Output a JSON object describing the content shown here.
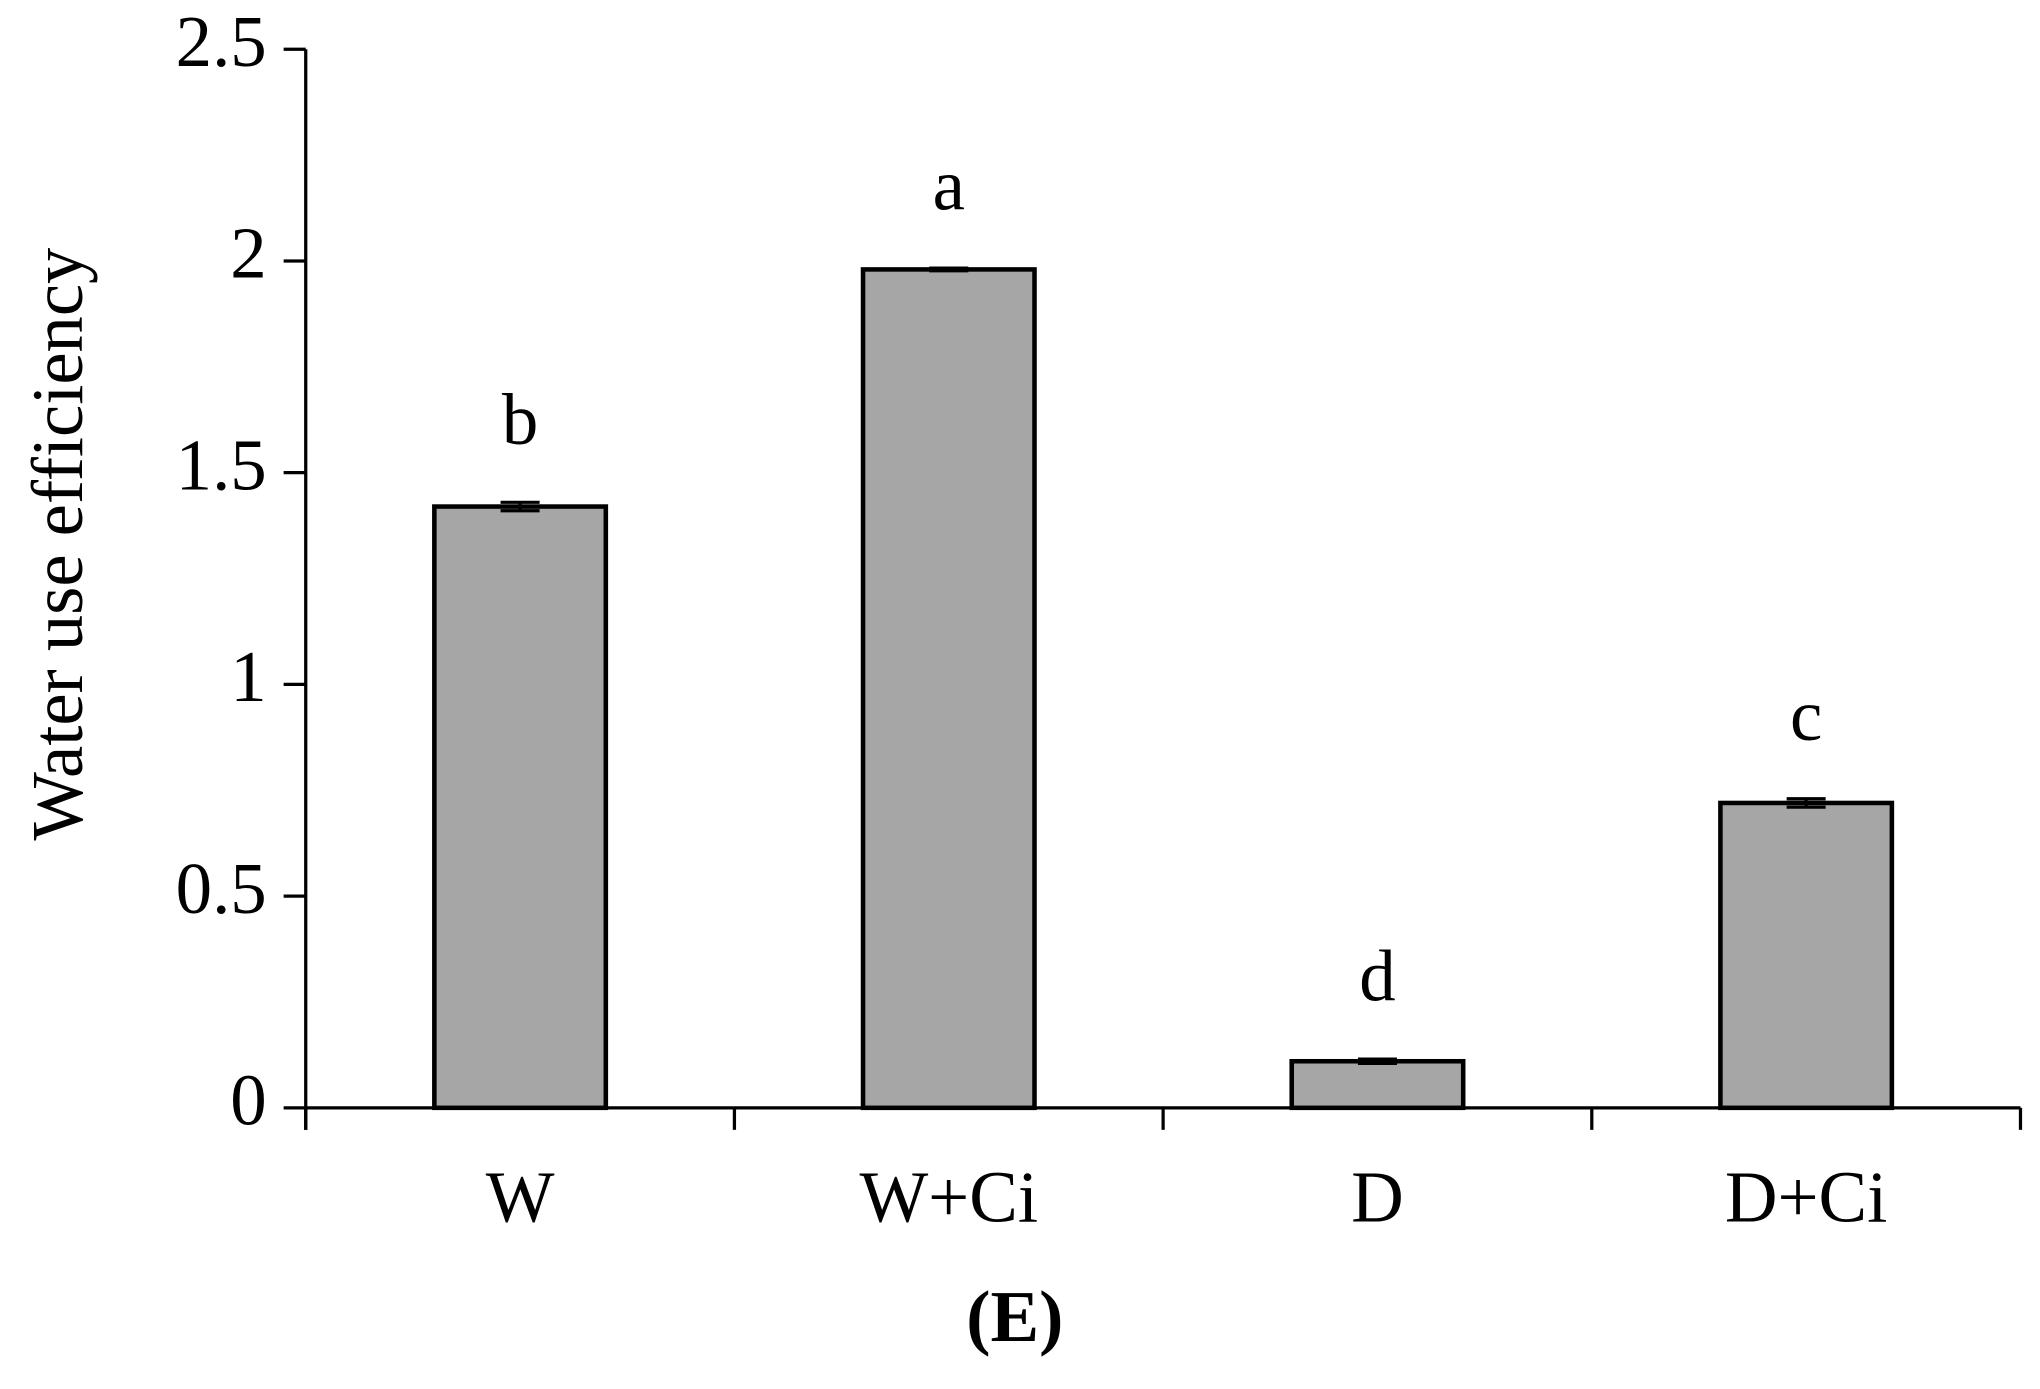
{
  "chart_data": {
    "type": "bar",
    "ylabel": "Water use efficiency",
    "panel_label": "(E)",
    "categories": [
      "W",
      "W+Ci",
      "D",
      "D+Ci"
    ],
    "values": [
      1.42,
      1.98,
      0.11,
      0.72
    ],
    "errors": [
      0.01,
      0.003,
      0.005,
      0.01
    ],
    "letters": [
      "b",
      "a",
      "d",
      "c"
    ],
    "color": "#a6a6a6",
    "ylim": [
      0,
      2.5
    ],
    "yticks": [
      0,
      0.5,
      1,
      1.5,
      2,
      2.5
    ],
    "grid": false
  }
}
